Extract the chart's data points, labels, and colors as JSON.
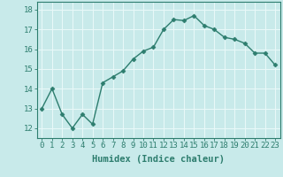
{
  "x": [
    0,
    1,
    2,
    3,
    4,
    5,
    6,
    7,
    8,
    9,
    10,
    11,
    12,
    13,
    14,
    15,
    16,
    17,
    18,
    19,
    20,
    21,
    22,
    23
  ],
  "y": [
    13.0,
    14.0,
    12.7,
    12.0,
    12.7,
    12.2,
    14.3,
    14.6,
    14.9,
    15.5,
    15.9,
    16.1,
    17.0,
    17.5,
    17.45,
    17.7,
    17.2,
    17.0,
    16.6,
    16.5,
    16.3,
    15.8,
    15.8,
    15.2
  ],
  "xlabel": "Humidex (Indice chaleur)",
  "line_color": "#2d7d6e",
  "bg_color": "#c8eaea",
  "grid_color": "#e8f8f8",
  "ylim": [
    11.5,
    18.4
  ],
  "xlim": [
    -0.5,
    23.5
  ],
  "yticks": [
    12,
    13,
    14,
    15,
    16,
    17,
    18
  ],
  "xticks": [
    0,
    1,
    2,
    3,
    4,
    5,
    6,
    7,
    8,
    9,
    10,
    11,
    12,
    13,
    14,
    15,
    16,
    17,
    18,
    19,
    20,
    21,
    22,
    23
  ],
  "xtick_labels": [
    "0",
    "1",
    "2",
    "3",
    "4",
    "5",
    "6",
    "7",
    "8",
    "9",
    "10",
    "11",
    "12",
    "13",
    "14",
    "15",
    "16",
    "17",
    "18",
    "19",
    "20",
    "21",
    "22",
    "23"
  ],
  "marker": "D",
  "marker_size": 2.5,
  "line_width": 1.0,
  "tick_fontsize": 6.5,
  "xlabel_fontsize": 7.5
}
